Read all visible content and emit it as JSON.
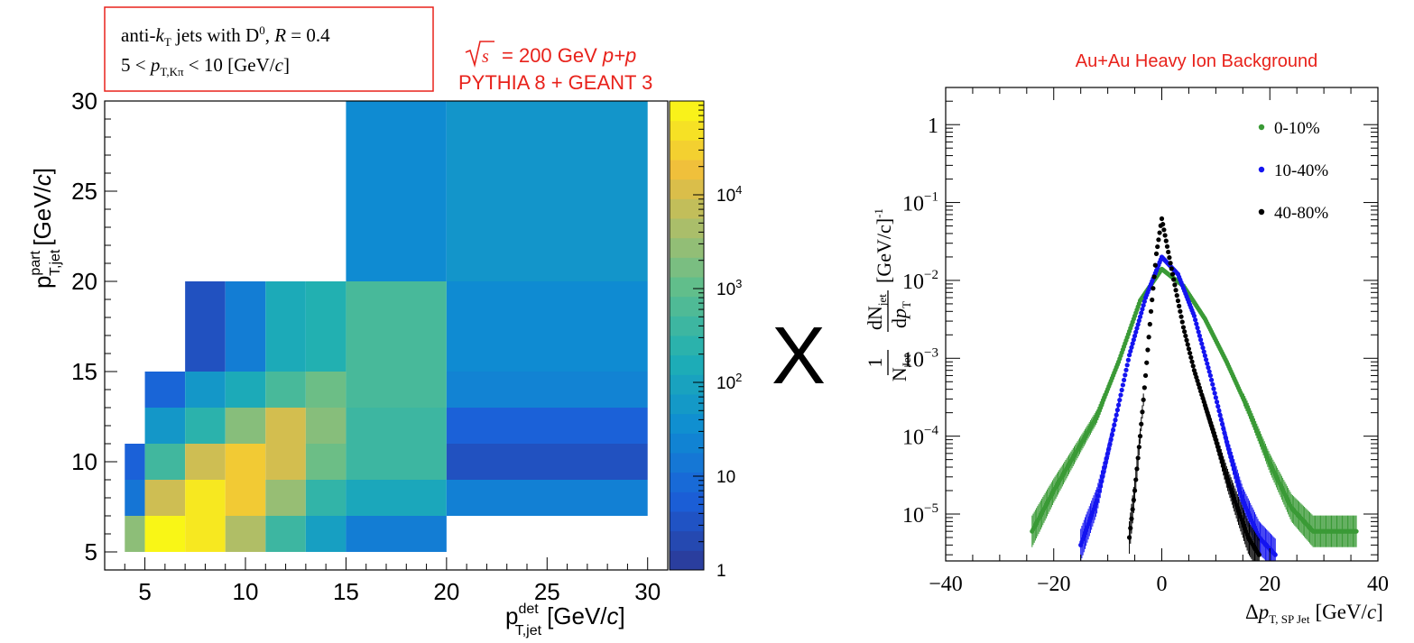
{
  "heatmap_panel": {
    "info_box": {
      "line1": {
        "pre": "anti-",
        "k": "k",
        "ksub": "T",
        "post": " jets with D",
        "sup": "0",
        "r_pre": ", ",
        "r": "R",
        "r_post": " = 0.4"
      },
      "line2": {
        "pre": "5 < ",
        "p": "p",
        "psub": "T,Kπ",
        "post": " < 10 [GeV/",
        "c": "c",
        "close": "]"
      }
    },
    "energy_label": {
      "pre": "= 200 GeV ",
      "pp": "p+p",
      "sqrt": "√",
      "s": "s"
    },
    "sim_label": "PYTHIA 8 + GEANT 3",
    "ylabel": {
      "p": "p",
      "sup": "part",
      "sub": "T,jet",
      "unit": "[GeV/",
      "c": "c",
      "close": "]"
    },
    "xlabel": {
      "p": "p",
      "sup": "det",
      "sub": "T,jet",
      "unit": "[GeV/",
      "c": "c",
      "close": "]"
    }
  },
  "multiply_sign": "X",
  "spectrum_panel": {
    "title": "Au+Au Heavy Ion Background",
    "ylabel": {
      "one": "1",
      "N": "N",
      "Nsub": "Jet",
      "dN": "dN",
      "dNsub": "jet",
      "dp": "dp",
      "dpsub": "T",
      "unit": "[GeV/c]",
      "unit_sup": "-1"
    },
    "xlabel": {
      "delta": "Δ",
      "p": "p",
      "sub": "T, SP Jet",
      "unit": "[GeV/",
      "c": "c",
      "close": "]"
    }
  },
  "colors": {
    "accent_red": "#e8221b",
    "frame": "#000000",
    "green": "#3a9a36",
    "blue": "#1414f0",
    "black": "#000000"
  },
  "chart_data": [
    {
      "type": "heatmap",
      "name_hint": "detector vs particle level response",
      "xlim": [
        3,
        31
      ],
      "ylim": [
        4,
        30
      ],
      "xticks": [
        5,
        10,
        15,
        20,
        25,
        30
      ],
      "yticks": [
        5,
        10,
        15,
        20,
        25,
        30
      ],
      "zscale": "log",
      "zlim": [
        1,
        100000
      ],
      "colorbar_ticks": [
        {
          "value": 1,
          "label": "1"
        },
        {
          "value": 10,
          "label": "10"
        },
        {
          "value": 100,
          "label": "10",
          "sup": "2"
        },
        {
          "value": 1000,
          "label": "10",
          "sup": "3"
        },
        {
          "value": 10000,
          "label": "10",
          "sup": "4"
        }
      ],
      "cells": [
        {
          "x": [
            4,
            5
          ],
          "y": [
            5,
            7
          ],
          "z": 2500
        },
        {
          "x": [
            5,
            7
          ],
          "y": [
            5,
            7
          ],
          "z": 90000
        },
        {
          "x": [
            7,
            9
          ],
          "y": [
            5,
            7
          ],
          "z": 60000
        },
        {
          "x": [
            9,
            11
          ],
          "y": [
            5,
            7
          ],
          "z": 5000
        },
        {
          "x": [
            11,
            13
          ],
          "y": [
            5,
            7
          ],
          "z": 400
        },
        {
          "x": [
            13,
            15
          ],
          "y": [
            5,
            7
          ],
          "z": 80
        },
        {
          "x": [
            15,
            20
          ],
          "y": [
            5,
            7
          ],
          "z": 18
        },
        {
          "x": [
            4,
            5
          ],
          "y": [
            7,
            9
          ],
          "z": 13
        },
        {
          "x": [
            5,
            7
          ],
          "y": [
            7,
            9
          ],
          "z": 9000
        },
        {
          "x": [
            7,
            9
          ],
          "y": [
            7,
            9
          ],
          "z": 60000
        },
        {
          "x": [
            9,
            11
          ],
          "y": [
            7,
            9
          ],
          "z": 25000
        },
        {
          "x": [
            11,
            13
          ],
          "y": [
            7,
            9
          ],
          "z": 3000
        },
        {
          "x": [
            13,
            15
          ],
          "y": [
            7,
            9
          ],
          "z": 300
        },
        {
          "x": [
            15,
            20
          ],
          "y": [
            7,
            9
          ],
          "z": 120
        },
        {
          "x": [
            20,
            30
          ],
          "y": [
            7,
            9
          ],
          "z": 20
        },
        {
          "x": [
            4,
            5
          ],
          "y": [
            9,
            11
          ],
          "z": 6
        },
        {
          "x": [
            5,
            7
          ],
          "y": [
            9,
            11
          ],
          "z": 450
        },
        {
          "x": [
            7,
            9
          ],
          "y": [
            9,
            11
          ],
          "z": 9000
        },
        {
          "x": [
            9,
            11
          ],
          "y": [
            9,
            11
          ],
          "z": 25000
        },
        {
          "x": [
            11,
            13
          ],
          "y": [
            9,
            11
          ],
          "z": 10000
        },
        {
          "x": [
            13,
            15
          ],
          "y": [
            9,
            11
          ],
          "z": 1300
        },
        {
          "x": [
            15,
            20
          ],
          "y": [
            9,
            11
          ],
          "z": 400
        },
        {
          "x": [
            20,
            30
          ],
          "y": [
            9,
            11
          ],
          "z": 3
        },
        {
          "x": [
            5,
            7
          ],
          "y": [
            11,
            13
          ],
          "z": 55
        },
        {
          "x": [
            7,
            9
          ],
          "y": [
            11,
            13
          ],
          "z": 250
        },
        {
          "x": [
            9,
            11
          ],
          "y": [
            11,
            13
          ],
          "z": 2200
        },
        {
          "x": [
            11,
            13
          ],
          "y": [
            11,
            13
          ],
          "z": 10000
        },
        {
          "x": [
            13,
            15
          ],
          "y": [
            11,
            13
          ],
          "z": 2200
        },
        {
          "x": [
            15,
            20
          ],
          "y": [
            11,
            13
          ],
          "z": 400
        },
        {
          "x": [
            20,
            30
          ],
          "y": [
            11,
            13
          ],
          "z": 6
        },
        {
          "x": [
            5,
            7
          ],
          "y": [
            13,
            15
          ],
          "z": 7
        },
        {
          "x": [
            7,
            9
          ],
          "y": [
            13,
            15
          ],
          "z": 55
        },
        {
          "x": [
            9,
            11
          ],
          "y": [
            13,
            15
          ],
          "z": 140
        },
        {
          "x": [
            11,
            13
          ],
          "y": [
            13,
            15
          ],
          "z": 550
        },
        {
          "x": [
            13,
            15
          ],
          "y": [
            13,
            15
          ],
          "z": 1300
        },
        {
          "x": [
            15,
            20
          ],
          "y": [
            13,
            15
          ],
          "z": 550
        },
        {
          "x": [
            20,
            30
          ],
          "y": [
            13,
            15
          ],
          "z": 22
        },
        {
          "x": [
            7,
            9
          ],
          "y": [
            15,
            20
          ],
          "z": 3
        },
        {
          "x": [
            9,
            11
          ],
          "y": [
            15,
            20
          ],
          "z": 18
        },
        {
          "x": [
            11,
            13
          ],
          "y": [
            15,
            20
          ],
          "z": 140
        },
        {
          "x": [
            13,
            15
          ],
          "y": [
            15,
            20
          ],
          "z": 200
        },
        {
          "x": [
            15,
            20
          ],
          "y": [
            15,
            20
          ],
          "z": 550
        },
        {
          "x": [
            20,
            30
          ],
          "y": [
            15,
            20
          ],
          "z": 30
        },
        {
          "x": [
            15,
            20
          ],
          "y": [
            20,
            30
          ],
          "z": 30
        },
        {
          "x": [
            20,
            30
          ],
          "y": [
            20,
            30
          ],
          "z": 50
        }
      ]
    },
    {
      "type": "scatter",
      "xlim": [
        -40,
        40
      ],
      "yscale": "log",
      "ylim": [
        2.5e-06,
        3
      ],
      "xticks": [
        -40,
        -20,
        0,
        20,
        40
      ],
      "xtick_labels": [
        "−40",
        "−20",
        "0",
        "20",
        "40"
      ],
      "yticks": [
        {
          "value": 1e-05,
          "label": "10",
          "sup": "−5"
        },
        {
          "value": 0.0001,
          "label": "10",
          "sup": "−4"
        },
        {
          "value": 0.001,
          "label": "10",
          "sup": "−3"
        },
        {
          "value": 0.01,
          "label": "10",
          "sup": "−2"
        },
        {
          "value": 0.1,
          "label": "10",
          "sup": "−1"
        },
        {
          "value": 1,
          "label": "1"
        }
      ],
      "legend_position": "top-right",
      "series": [
        {
          "name": "0-10%",
          "color": "#3a9a36",
          "peak": 0.014,
          "x_min": -24,
          "x_max": 36,
          "points": [
            [
              -24,
              6e-06
            ],
            [
              -20,
              2e-05
            ],
            [
              -16,
              6e-05
            ],
            [
              -12,
              0.00018
            ],
            [
              -8,
              0.0009
            ],
            [
              -4,
              0.0055
            ],
            [
              0,
              0.014
            ],
            [
              4,
              0.0085
            ],
            [
              8,
              0.0032
            ],
            [
              12,
              0.0009
            ],
            [
              16,
              0.00022
            ],
            [
              20,
              4.5e-05
            ],
            [
              24,
              1.2e-05
            ],
            [
              28,
              6e-06
            ],
            [
              32,
              6e-06
            ],
            [
              36,
              6e-06
            ]
          ]
        },
        {
          "name": "10-40%",
          "color": "#1414f0",
          "peak": 0.02,
          "x_min": -15,
          "x_max": 21,
          "points": [
            [
              -15,
              4e-06
            ],
            [
              -12,
              1.5e-05
            ],
            [
              -9,
              0.00012
            ],
            [
              -6,
              0.0011
            ],
            [
              -3,
              0.006
            ],
            [
              0,
              0.02
            ],
            [
              3,
              0.012
            ],
            [
              6,
              0.0035
            ],
            [
              9,
              0.0006
            ],
            [
              12,
              8.5e-05
            ],
            [
              15,
              1.5e-05
            ],
            [
              18,
              5e-06
            ],
            [
              21,
              3e-06
            ]
          ]
        },
        {
          "name": "40-80%",
          "color": "#000000",
          "peak": 0.062,
          "x_min": -6,
          "x_max": 18,
          "points": [
            [
              -6,
              5e-06
            ],
            [
              -5,
              2e-05
            ],
            [
              -4,
              0.0001
            ],
            [
              -3,
              0.0006
            ],
            [
              -2,
              0.004
            ],
            [
              -1,
              0.022
            ],
            [
              0,
              0.062
            ],
            [
              2,
              0.012
            ],
            [
              4,
              0.0025
            ],
            [
              6,
              0.0007
            ],
            [
              8,
              0.00025
            ],
            [
              10,
              9e-05
            ],
            [
              12,
              3e-05
            ],
            [
              14,
              1.2e-05
            ],
            [
              16,
              5e-06
            ],
            [
              18,
              3e-06
            ]
          ]
        }
      ]
    }
  ]
}
